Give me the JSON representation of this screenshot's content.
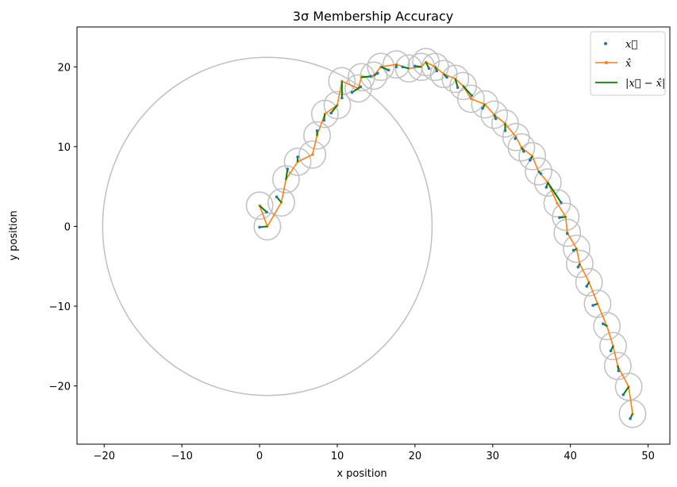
{
  "chart_data": {
    "type": "scatter",
    "title": "3σ Membership Accuracy",
    "xlabel": "x position",
    "ylabel": "y position",
    "xlim": [
      -23.5,
      52.8
    ],
    "ylim": [
      -27.3,
      25.0
    ],
    "xticks": [
      -20,
      -10,
      0,
      10,
      20,
      30,
      40,
      50
    ],
    "yticks": [
      -20,
      -10,
      0,
      10,
      20
    ],
    "grid": false,
    "legend_position": "top-right",
    "legend": [
      "x⃗",
      "x̂",
      "|x⃗ − x̂|"
    ],
    "colors": {
      "true_points": "#1f77b4",
      "estimate": "#ff7f0e",
      "error": "#008000",
      "membership_circles": "#c0c0c0"
    },
    "large_circle": {
      "center": [
        1.0,
        0.0
      ],
      "radius": 21.2
    },
    "true_positions": [
      [
        0.0,
        -0.1
      ],
      [
        0.9,
        1.8
      ],
      [
        2.2,
        3.7
      ],
      [
        3.6,
        7.2
      ],
      [
        4.9,
        8.7
      ],
      [
        7.4,
        12.0
      ],
      [
        8.3,
        13.3
      ],
      [
        9.2,
        14.2
      ],
      [
        10.6,
        16.1
      ],
      [
        11.9,
        16.8
      ],
      [
        13.0,
        17.5
      ],
      [
        14.3,
        18.8
      ],
      [
        15.2,
        19.2
      ],
      [
        16.6,
        19.6
      ],
      [
        17.6,
        20.0
      ],
      [
        18.4,
        20.0
      ],
      [
        20.0,
        20.1
      ],
      [
        21.8,
        19.8
      ],
      [
        22.8,
        19.5
      ],
      [
        24.1,
        18.7
      ],
      [
        25.5,
        17.4
      ],
      [
        27.3,
        16.4
      ],
      [
        28.7,
        14.8
      ],
      [
        30.4,
        13.5
      ],
      [
        31.6,
        12.0
      ],
      [
        32.9,
        11.0
      ],
      [
        34.0,
        9.4
      ],
      [
        34.8,
        8.3
      ],
      [
        36.2,
        6.6
      ],
      [
        36.9,
        4.9
      ],
      [
        38.8,
        3.0
      ],
      [
        38.6,
        1.1
      ],
      [
        39.6,
        -0.9
      ],
      [
        40.4,
        -3.0
      ],
      [
        41.0,
        -5.1
      ],
      [
        42.1,
        -7.5
      ],
      [
        42.9,
        -9.9
      ],
      [
        44.2,
        -12.2
      ],
      [
        45.2,
        -15.6
      ],
      [
        46.2,
        -18.1
      ],
      [
        46.8,
        -21.1
      ],
      [
        47.7,
        -24.1
      ]
    ],
    "estimated_positions": [
      [
        0.0,
        2.6
      ],
      [
        1.0,
        0.0
      ],
      [
        2.8,
        3.0
      ],
      [
        3.4,
        5.9
      ],
      [
        4.9,
        8.1
      ],
      [
        6.8,
        9.0
      ],
      [
        7.4,
        11.4
      ],
      [
        8.4,
        14.1
      ],
      [
        10.0,
        15.2
      ],
      [
        10.6,
        18.2
      ],
      [
        12.7,
        17.3
      ],
      [
        13.1,
        18.7
      ],
      [
        14.7,
        18.9
      ],
      [
        15.6,
        20.0
      ],
      [
        17.6,
        20.3
      ],
      [
        19.2,
        19.8
      ],
      [
        20.8,
        20.0
      ],
      [
        21.4,
        20.6
      ],
      [
        22.6,
        20.0
      ],
      [
        23.7,
        19.1
      ],
      [
        25.2,
        18.5
      ],
      [
        26.2,
        17.6
      ],
      [
        27.2,
        16.0
      ],
      [
        29.0,
        15.3
      ],
      [
        30.2,
        14.0
      ],
      [
        31.6,
        12.9
      ],
      [
        33.0,
        11.2
      ],
      [
        33.7,
        9.9
      ],
      [
        35.1,
        8.8
      ],
      [
        35.9,
        6.9
      ],
      [
        37.1,
        5.5
      ],
      [
        38.3,
        2.9
      ],
      [
        39.4,
        1.2
      ],
      [
        39.6,
        -0.8
      ],
      [
        40.8,
        -2.8
      ],
      [
        41.2,
        -4.7
      ],
      [
        42.4,
        -7.0
      ],
      [
        43.5,
        -9.7
      ],
      [
        44.7,
        -12.5
      ],
      [
        45.5,
        -15.0
      ],
      [
        46.1,
        -17.5
      ],
      [
        47.5,
        -20.1
      ],
      [
        48.0,
        -23.5
      ]
    ],
    "error_segments": [
      [
        [
          0.0,
          -0.1
        ],
        [
          1.0,
          0.0
        ]
      ],
      [
        [
          0.9,
          1.8
        ],
        [
          0.0,
          2.6
        ]
      ],
      [
        [
          2.2,
          3.7
        ],
        [
          2.8,
          3.0
        ]
      ],
      [
        [
          3.6,
          7.2
        ],
        [
          3.4,
          5.9
        ]
      ],
      [
        [
          4.9,
          8.7
        ],
        [
          4.9,
          8.1
        ]
      ],
      [
        [
          7.4,
          12.0
        ],
        [
          7.4,
          11.4
        ]
      ],
      [
        [
          8.3,
          13.3
        ],
        [
          8.4,
          14.1
        ]
      ],
      [
        [
          9.2,
          14.2
        ],
        [
          10.0,
          15.2
        ]
      ],
      [
        [
          10.6,
          16.1
        ],
        [
          10.6,
          18.2
        ]
      ],
      [
        [
          11.9,
          16.8
        ],
        [
          12.7,
          17.3
        ]
      ],
      [
        [
          13.0,
          17.5
        ],
        [
          12.7,
          17.3
        ]
      ],
      [
        [
          14.3,
          18.8
        ],
        [
          13.1,
          18.7
        ]
      ],
      [
        [
          15.2,
          19.2
        ],
        [
          14.7,
          18.9
        ]
      ],
      [
        [
          16.6,
          19.6
        ],
        [
          15.6,
          20.0
        ]
      ],
      [
        [
          17.6,
          20.0
        ],
        [
          17.6,
          20.3
        ]
      ],
      [
        [
          18.4,
          20.0
        ],
        [
          19.2,
          19.8
        ]
      ],
      [
        [
          20.0,
          20.1
        ],
        [
          20.8,
          20.0
        ]
      ],
      [
        [
          21.8,
          19.8
        ],
        [
          21.4,
          20.6
        ]
      ],
      [
        [
          22.8,
          19.5
        ],
        [
          22.6,
          20.0
        ]
      ],
      [
        [
          24.1,
          18.7
        ],
        [
          23.7,
          19.1
        ]
      ],
      [
        [
          25.5,
          17.4
        ],
        [
          25.2,
          18.5
        ]
      ],
      [
        [
          27.3,
          16.4
        ],
        [
          26.2,
          17.6
        ]
      ],
      [
        [
          28.7,
          14.8
        ],
        [
          29.0,
          15.3
        ]
      ],
      [
        [
          30.4,
          13.5
        ],
        [
          30.2,
          14.0
        ]
      ],
      [
        [
          31.6,
          12.0
        ],
        [
          31.6,
          12.9
        ]
      ],
      [
        [
          32.9,
          11.0
        ],
        [
          33.0,
          11.2
        ]
      ],
      [
        [
          34.0,
          9.4
        ],
        [
          33.7,
          9.9
        ]
      ],
      [
        [
          34.8,
          8.3
        ],
        [
          35.1,
          8.8
        ]
      ],
      [
        [
          36.2,
          6.6
        ],
        [
          35.9,
          6.9
        ]
      ],
      [
        [
          36.9,
          4.9
        ],
        [
          37.1,
          5.5
        ]
      ],
      [
        [
          38.8,
          3.0
        ],
        [
          37.1,
          5.5
        ]
      ],
      [
        [
          38.6,
          1.1
        ],
        [
          39.4,
          1.2
        ]
      ],
      [
        [
          39.6,
          -0.9
        ],
        [
          39.6,
          -0.8
        ]
      ],
      [
        [
          40.4,
          -3.0
        ],
        [
          40.8,
          -2.8
        ]
      ],
      [
        [
          41.0,
          -5.1
        ],
        [
          41.2,
          -4.7
        ]
      ],
      [
        [
          42.1,
          -7.5
        ],
        [
          42.4,
          -7.0
        ]
      ],
      [
        [
          42.9,
          -9.9
        ],
        [
          43.5,
          -9.7
        ]
      ],
      [
        [
          44.2,
          -12.2
        ],
        [
          44.7,
          -12.5
        ]
      ],
      [
        [
          45.2,
          -15.6
        ],
        [
          45.5,
          -15.0
        ]
      ],
      [
        [
          46.2,
          -18.1
        ],
        [
          46.1,
          -17.5
        ]
      ],
      [
        [
          46.8,
          -21.1
        ],
        [
          47.5,
          -20.1
        ]
      ],
      [
        [
          47.7,
          -24.1
        ],
        [
          48.0,
          -23.5
        ]
      ]
    ],
    "membership_circle_radius": 1.7
  }
}
